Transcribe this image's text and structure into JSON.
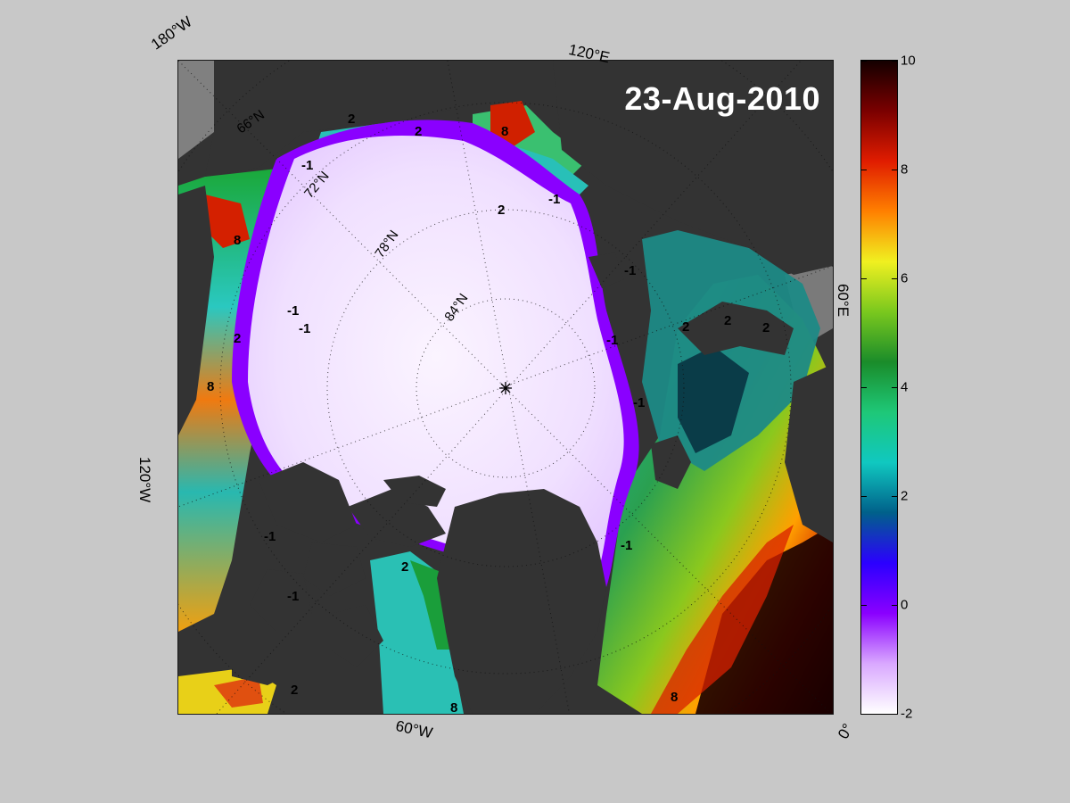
{
  "map": {
    "date": "23-Aug-2010",
    "longitude_labels": {
      "w180": "180°W",
      "e120": "120°E",
      "e60": "60°E",
      "w120": "120°W",
      "w60": "60°W",
      "zero": "0°"
    },
    "latitude_labels": {
      "lat66": "66°N",
      "lat72": "72°N",
      "lat78": "78°N",
      "lat84": "84°N"
    },
    "contour_labels": [
      "2",
      "-1",
      "8"
    ],
    "colors": {
      "background": "#c8c8c8",
      "land": "#333333",
      "ice_white": "#f4eaff"
    }
  },
  "colorbar": {
    "min": -2,
    "max": 10,
    "ticks": [
      "10",
      "8",
      "6",
      "4",
      "2",
      "0",
      "-2"
    ],
    "stops": [
      "#ffffff",
      "#d9a8ff",
      "#8a00ff",
      "#2b00ff",
      "#00608a",
      "#10c8c0",
      "#1ec878",
      "#1a8c2a",
      "#7ac81e",
      "#f0f020",
      "#ff8000",
      "#e01c00",
      "#7a0000",
      "#140000"
    ]
  }
}
